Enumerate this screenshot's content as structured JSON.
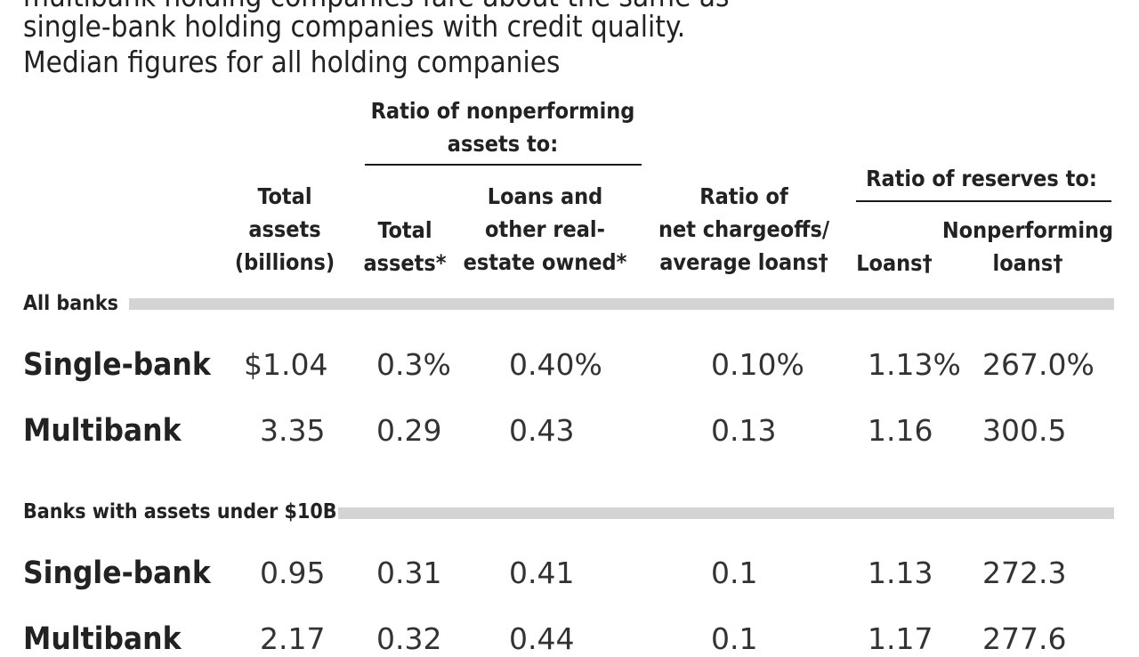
{
  "intro": [
    "multibank holding companies fare about the same as",
    "single-bank holding companies with credit quality.",
    "Median figures for all holding companies"
  ],
  "headers": {
    "total_assets": [
      "Total",
      "assets",
      "(billions)"
    ],
    "nonperforming_group": [
      "Ratio of nonperforming",
      "assets to:"
    ],
    "np_total_assets": [
      "Total",
      "assets*"
    ],
    "np_loans_reo": [
      "Loans and",
      "other real-",
      "estate owned*"
    ],
    "chargeoffs": [
      "Ratio of",
      "net chargeoffs/",
      "average loans†"
    ],
    "reserves_group": [
      "Ratio of reserves to:"
    ],
    "res_loans": [
      "Loans†"
    ],
    "res_nonperforming": [
      "Nonperforming",
      "loans†"
    ]
  },
  "sections": [
    {
      "label": "All banks",
      "rows": [
        {
          "name": "Single-bank",
          "values": [
            "$1.04",
            "0.3%",
            "0.40%",
            "0.10%",
            "1.13%",
            "267.0%"
          ]
        },
        {
          "name": "Multibank",
          "values": [
            "3.35",
            "0.29",
            "0.43",
            "0.13",
            "1.16",
            "300.5"
          ]
        }
      ]
    },
    {
      "label": "Banks with assets under $10B",
      "rows": [
        {
          "name": "Single-bank",
          "values": [
            "0.95",
            "0.31",
            "0.41",
            "0.1",
            "1.13",
            "272.3"
          ]
        },
        {
          "name": "Multibank",
          "values": [
            "2.17",
            "0.32",
            "0.44",
            "0.1",
            "1.17",
            "277.6"
          ]
        }
      ]
    }
  ]
}
